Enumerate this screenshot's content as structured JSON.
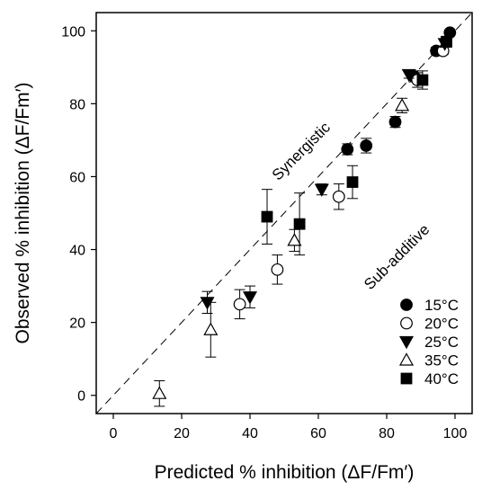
{
  "chart_data": {
    "type": "scatter",
    "title": "",
    "xlabel": "Predicted % inhibition (ΔF/Fm′)",
    "ylabel": "Observed % inhibition (ΔF/Fm′)",
    "xlim": [
      -5,
      105
    ],
    "ylim": [
      -5,
      105
    ],
    "xticks": [
      0,
      20,
      40,
      60,
      80,
      100
    ],
    "yticks": [
      0,
      20,
      40,
      60,
      80,
      100
    ],
    "reference_line": {
      "style": "dashed",
      "from": [
        -5,
        -5
      ],
      "to": [
        105,
        105
      ]
    },
    "annotations": [
      {
        "text": "Synergistic",
        "x": 56,
        "y": 66,
        "rotation": -45
      },
      {
        "text": "Sub-additive",
        "x": 84,
        "y": 37,
        "rotation": -45
      }
    ],
    "legend_position": "bottom-right",
    "series": [
      {
        "name": "15°C",
        "marker": "circle",
        "fill": "#000000",
        "points": [
          {
            "x": 68.5,
            "y": 67.5,
            "err": 1.5
          },
          {
            "x": 74,
            "y": 68.5,
            "err": 2
          },
          {
            "x": 82.5,
            "y": 75,
            "err": 1.5
          },
          {
            "x": 88,
            "y": 87.5,
            "err": 1.5
          },
          {
            "x": 94.5,
            "y": 94.5,
            "err": 1
          },
          {
            "x": 98.5,
            "y": 99.5,
            "err": 0.5
          }
        ]
      },
      {
        "name": "20°C",
        "marker": "circle",
        "fill": "#ffffff",
        "points": [
          {
            "x": 37,
            "y": 25,
            "err": 4
          },
          {
            "x": 48,
            "y": 34.5,
            "err": 4
          },
          {
            "x": 66,
            "y": 54.5,
            "err": 3.5
          },
          {
            "x": 89,
            "y": 86.5,
            "err": 2
          },
          {
            "x": 96.5,
            "y": 94.5,
            "err": 1
          }
        ]
      },
      {
        "name": "25°C",
        "marker": "triangle-down",
        "fill": "#000000",
        "points": [
          {
            "x": 27.5,
            "y": 25.5,
            "err": 3
          },
          {
            "x": 40,
            "y": 27,
            "err": 3
          },
          {
            "x": 61,
            "y": 56.5,
            "err": 1.5
          },
          {
            "x": 86.5,
            "y": 88,
            "err": 1
          },
          {
            "x": 97,
            "y": 96.5,
            "err": 1
          }
        ]
      },
      {
        "name": "35°C",
        "marker": "triangle-up",
        "fill": "#ffffff",
        "points": [
          {
            "x": 13.5,
            "y": 0.5,
            "err": 3.5
          },
          {
            "x": 28.5,
            "y": 18,
            "err": 7.5
          },
          {
            "x": 53,
            "y": 42.5,
            "err": 3
          },
          {
            "x": 84.5,
            "y": 79.5,
            "err": 2
          }
        ]
      },
      {
        "name": "40°C",
        "marker": "square",
        "fill": "#000000",
        "points": [
          {
            "x": 45,
            "y": 49,
            "err": 7.5
          },
          {
            "x": 54.5,
            "y": 47,
            "err": 8.5
          },
          {
            "x": 70,
            "y": 58.5,
            "err": 4.5
          },
          {
            "x": 90.5,
            "y": 86.5,
            "err": 2.5
          },
          {
            "x": 97.5,
            "y": 97,
            "err": 1.5
          }
        ]
      }
    ]
  }
}
